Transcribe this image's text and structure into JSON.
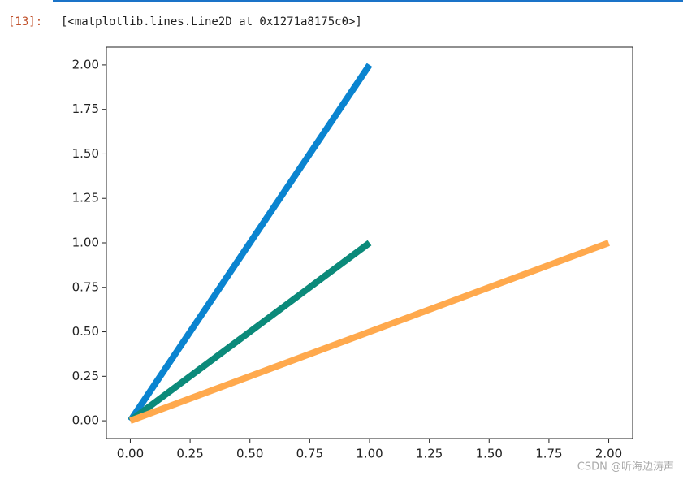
{
  "cell": {
    "prompt": "[13]:",
    "output": "[<matplotlib.lines.Line2D at 0x1271a8175c0>]"
  },
  "watermark": "CSDN @听海边涛声",
  "chart_data": {
    "type": "line",
    "series": [
      {
        "color": "#0a84d0",
        "x": [
          0,
          1
        ],
        "values": [
          0,
          2
        ]
      },
      {
        "color": "#0b8a7a",
        "x": [
          0,
          1
        ],
        "values": [
          0,
          1
        ]
      },
      {
        "color": "#ffa94d",
        "x": [
          0,
          2
        ],
        "values": [
          0,
          1
        ]
      }
    ],
    "xlim": [
      -0.1,
      2.1
    ],
    "ylim": [
      -0.1,
      2.1
    ],
    "xticks": [
      {
        "value": 0,
        "label": "0.00"
      },
      {
        "value": 0.25,
        "label": "0.25"
      },
      {
        "value": 0.5,
        "label": "0.50"
      },
      {
        "value": 0.75,
        "label": "0.75"
      },
      {
        "value": 1,
        "label": "1.00"
      },
      {
        "value": 1.25,
        "label": "1.25"
      },
      {
        "value": 1.5,
        "label": "1.50"
      },
      {
        "value": 1.75,
        "label": "1.75"
      },
      {
        "value": 2,
        "label": "2.00"
      }
    ],
    "yticks": [
      {
        "value": 0,
        "label": "0.00"
      },
      {
        "value": 0.25,
        "label": "0.25"
      },
      {
        "value": 0.5,
        "label": "0.50"
      },
      {
        "value": 0.75,
        "label": "0.75"
      },
      {
        "value": 1,
        "label": "1.00"
      },
      {
        "value": 1.25,
        "label": "1.25"
      },
      {
        "value": 1.5,
        "label": "1.50"
      },
      {
        "value": 1.75,
        "label": "1.75"
      },
      {
        "value": 2,
        "label": "2.00"
      }
    ],
    "grid": false
  }
}
